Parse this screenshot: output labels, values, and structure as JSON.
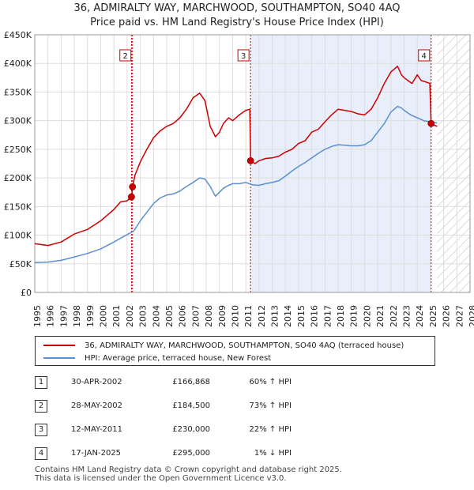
{
  "titles": {
    "line1": "36, ADMIRALTY WAY, MARCHWOOD, SOUTHAMPTON, SO40 4AQ",
    "line2": "Price paid vs. HM Land Registry's House Price Index (HPI)"
  },
  "chart_data": {
    "type": "line",
    "title": "Price paid vs. HM Land Registry's House Price Index (HPI)",
    "xlabel": "",
    "ylabel": "",
    "xlim": [
      1995,
      2028
    ],
    "ylim": [
      0,
      450000
    ],
    "y_ticks": [
      {
        "value": 0,
        "label": "£0"
      },
      {
        "value": 50000,
        "label": "£50K"
      },
      {
        "value": 100000,
        "label": "£100K"
      },
      {
        "value": 150000,
        "label": "£150K"
      },
      {
        "value": 200000,
        "label": "£200K"
      },
      {
        "value": 250000,
        "label": "£250K"
      },
      {
        "value": 300000,
        "label": "£300K"
      },
      {
        "value": 350000,
        "label": "£350K"
      },
      {
        "value": 400000,
        "label": "£400K"
      },
      {
        "value": 450000,
        "label": "£450K"
      }
    ],
    "x_ticks": [
      "1995",
      "1996",
      "1997",
      "1998",
      "1999",
      "2000",
      "2001",
      "2002",
      "2003",
      "2004",
      "2005",
      "2006",
      "2007",
      "2008",
      "2009",
      "2010",
      "2011",
      "2012",
      "2013",
      "2014",
      "2015",
      "2016",
      "2017",
      "2018",
      "2019",
      "2020",
      "2021",
      "2022",
      "2023",
      "2024",
      "2025",
      "2026",
      "2027",
      "2028"
    ],
    "grid": true,
    "shaded_period": {
      "from": 2011.36,
      "to": 2025.05
    },
    "hatched_from": 2025.5,
    "series": [
      {
        "name": "36, ADMIRALTY WAY, MARCHWOOD, SOUTHAMPTON, SO40 4AQ (terraced house)",
        "color": "#cc0000",
        "x": [
          1995.0,
          1996.0,
          1997.0,
          1998.0,
          1999.0,
          2000.0,
          2001.0,
          2001.5,
          2002.0,
          2002.33,
          2002.42,
          2002.6,
          2003.0,
          2003.5,
          2004.0,
          2004.5,
          2005.0,
          2005.5,
          2006.0,
          2006.5,
          2007.0,
          2007.5,
          2007.9,
          2008.3,
          2008.7,
          2009.0,
          2009.3,
          2009.7,
          2010.0,
          2010.5,
          2011.0,
          2011.3,
          2011.36,
          2011.7,
          2012.0,
          2012.5,
          2013.0,
          2013.5,
          2014.0,
          2014.5,
          2015.0,
          2015.5,
          2016.0,
          2016.5,
          2017.0,
          2017.5,
          2018.0,
          2018.5,
          2019.0,
          2019.5,
          2020.0,
          2020.5,
          2021.0,
          2021.5,
          2022.0,
          2022.5,
          2022.8,
          2023.0,
          2023.3,
          2023.6,
          2024.0,
          2024.3,
          2024.6,
          2024.95,
          2025.05,
          2025.3,
          2025.5
        ],
        "values": [
          85000,
          82000,
          88000,
          102000,
          110000,
          125000,
          145000,
          158000,
          160000,
          166868,
          184500,
          205000,
          228000,
          250000,
          270000,
          282000,
          290000,
          295000,
          305000,
          320000,
          340000,
          348000,
          335000,
          290000,
          272000,
          280000,
          295000,
          305000,
          300000,
          310000,
          318000,
          320000,
          230000,
          225000,
          230000,
          234000,
          235000,
          238000,
          245000,
          250000,
          260000,
          265000,
          280000,
          285000,
          298000,
          310000,
          320000,
          318000,
          316000,
          312000,
          310000,
          320000,
          340000,
          365000,
          385000,
          395000,
          380000,
          375000,
          370000,
          365000,
          380000,
          370000,
          368000,
          365000,
          295000,
          292000,
          290000
        ]
      },
      {
        "name": "HPI: Average price, terraced house, New Forest",
        "color": "#5b8fd0",
        "x": [
          1995.0,
          1996.0,
          1997.0,
          1998.0,
          1999.0,
          2000.0,
          2001.0,
          2002.0,
          2002.5,
          2003.0,
          2003.5,
          2004.0,
          2004.5,
          2005.0,
          2005.5,
          2006.0,
          2006.5,
          2007.0,
          2007.5,
          2007.9,
          2008.3,
          2008.7,
          2009.0,
          2009.3,
          2009.7,
          2010.0,
          2010.5,
          2011.0,
          2011.5,
          2012.0,
          2012.5,
          2013.0,
          2013.5,
          2014.0,
          2014.5,
          2015.0,
          2015.5,
          2016.0,
          2016.5,
          2017.0,
          2017.5,
          2018.0,
          2018.5,
          2019.0,
          2019.5,
          2020.0,
          2020.5,
          2021.0,
          2021.5,
          2022.0,
          2022.5,
          2022.8,
          2023.0,
          2023.5,
          2024.0,
          2024.5,
          2025.0,
          2025.5
        ],
        "values": [
          52000,
          53000,
          56000,
          62000,
          68000,
          76000,
          88000,
          101000,
          107000,
          125000,
          140000,
          155000,
          165000,
          170000,
          172000,
          177000,
          185000,
          192000,
          200000,
          198000,
          185000,
          168000,
          175000,
          182000,
          187000,
          190000,
          190000,
          192000,
          188000,
          187000,
          190000,
          192000,
          195000,
          203000,
          212000,
          220000,
          227000,
          235000,
          243000,
          250000,
          255000,
          258000,
          257000,
          256000,
          256000,
          258000,
          265000,
          280000,
          295000,
          315000,
          325000,
          322000,
          318000,
          310000,
          305000,
          300000,
          298000,
          296000
        ]
      }
    ],
    "sales": [
      {
        "id": "1",
        "x": 2002.33,
        "value": 166868
      },
      {
        "id": "2",
        "x": 2002.41,
        "value": 184500
      },
      {
        "id": "3",
        "x": 2011.36,
        "value": 230000
      },
      {
        "id": "4",
        "x": 2025.05,
        "value": 295000
      }
    ],
    "marker_labels": [
      {
        "id": "2",
        "x": 2002.41
      },
      {
        "id": "3",
        "x": 2011.36
      },
      {
        "id": "4",
        "x": 2025.05
      }
    ]
  },
  "legend": {
    "property_label": "36, ADMIRALTY WAY, MARCHWOOD, SOUTHAMPTON, SO40 4AQ (terraced house)",
    "hpi_label": "HPI: Average price, terraced house, New Forest",
    "property_color": "#cc0000",
    "hpi_color": "#5b8fd0"
  },
  "sales_table": [
    {
      "num": "1",
      "date": "30-APR-2002",
      "price": "£166,868",
      "hpi": "60% ↑ HPI"
    },
    {
      "num": "2",
      "date": "28-MAY-2002",
      "price": "£184,500",
      "hpi": "73% ↑ HPI"
    },
    {
      "num": "3",
      "date": "12-MAY-2011",
      "price": "£230,000",
      "hpi": "22% ↑ HPI"
    },
    {
      "num": "4",
      "date": "17-JAN-2025",
      "price": "£295,000",
      "hpi": "1% ↓ HPI"
    }
  ],
  "footer": {
    "line1": "Contains HM Land Registry data © Crown copyright and database right 2025.",
    "line2": "This data is licensed under the Open Government Licence v3.0."
  }
}
